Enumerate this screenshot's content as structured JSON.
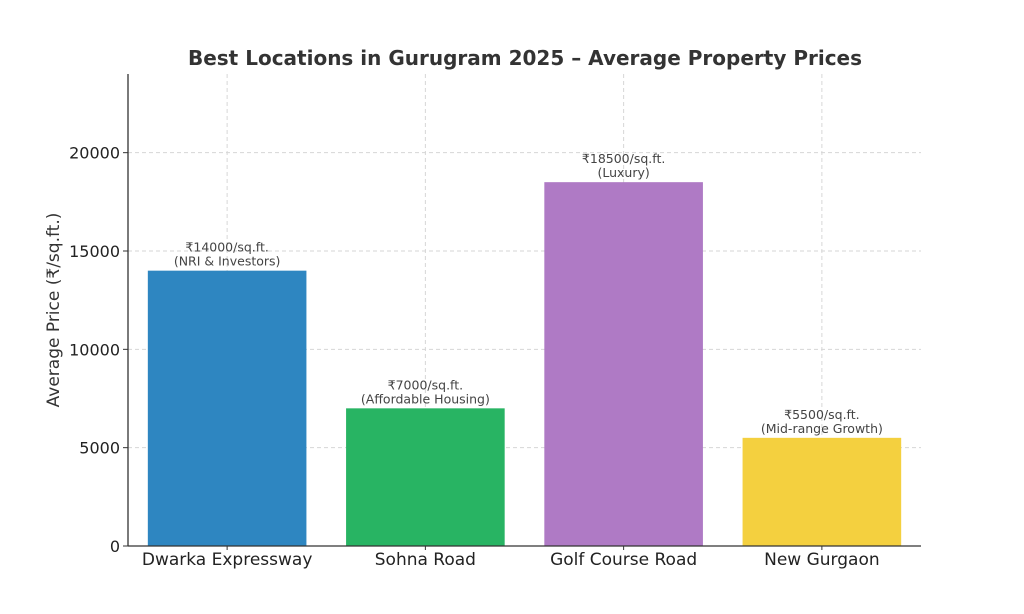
{
  "chart_data": {
    "type": "bar",
    "title": "Best Locations in Gurugram 2025 – Average Property Prices",
    "xlabel": "",
    "ylabel": "Average Price (₹/sq.ft.)",
    "ylim": [
      0,
      24000
    ],
    "yticks": [
      0,
      5000,
      10000,
      15000,
      20000
    ],
    "grid": true,
    "categories": [
      "Dwarka Expressway",
      "Sohna Road",
      "Golf Course Road",
      "New Gurgaon"
    ],
    "values": [
      14000,
      7000,
      18500,
      5500
    ],
    "bar_colors": [
      "#2e86c1",
      "#28b463",
      "#af7ac5",
      "#f4d03f"
    ],
    "data_labels": [
      [
        "₹14000/sq.ft.",
        "(NRI & Investors)"
      ],
      [
        "₹7000/sq.ft.",
        "(Affordable Housing)"
      ],
      [
        "₹18500/sq.ft.",
        "(Luxury)"
      ],
      [
        "₹5500/sq.ft.",
        "(Mid-range Growth)"
      ]
    ]
  }
}
